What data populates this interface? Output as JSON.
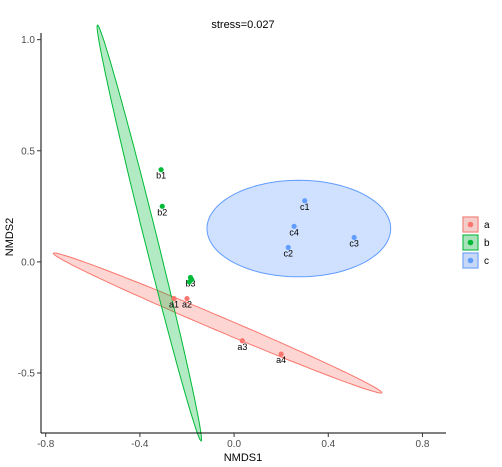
{
  "chart_data": {
    "type": "scatter",
    "title": "stress=0.027",
    "xlabel": "NMDS1",
    "ylabel": "NMDS2",
    "xlim": [
      -0.82,
      0.9
    ],
    "ylim": [
      -0.77,
      1.03
    ],
    "xticks": [
      -0.8,
      -0.4,
      0.0,
      0.4,
      0.8
    ],
    "xtick_labels": [
      "-0.8",
      "-0.4",
      "0.0",
      "0.4",
      "0.8"
    ],
    "yticks": [
      -0.5,
      0.0,
      0.5,
      1.0
    ],
    "ytick_labels": [
      "-0.5",
      "0.0",
      "0.5",
      "1.0"
    ],
    "grid": false,
    "legend": {
      "position": "right",
      "entries": [
        "a",
        "b",
        "c"
      ]
    },
    "series": [
      {
        "name": "a",
        "color": "#F8766D",
        "fill": "rgba(248,118,109,0.3)",
        "points": [
          {
            "label": "a1",
            "x": -0.255,
            "y": -0.165
          },
          {
            "label": "a2",
            "x": -0.2,
            "y": -0.165
          },
          {
            "label": "a3",
            "x": 0.035,
            "y": -0.355
          },
          {
            "label": "a4",
            "x": 0.2,
            "y": -0.415
          }
        ],
        "ellipse": {
          "cx": -0.07,
          "cy": -0.275,
          "rx": 0.758,
          "ry": 0.03,
          "angle_deg": -23
        }
      },
      {
        "name": "b",
        "color": "#00BA38",
        "fill": "rgba(0,186,56,0.3)",
        "points": [
          {
            "label": "b1",
            "x": -0.31,
            "y": 0.415
          },
          {
            "label": "b2",
            "x": -0.305,
            "y": 0.25
          },
          {
            "label": "b3",
            "x": -0.185,
            "y": -0.07
          },
          {
            "label": "b4",
            "x": -0.18,
            "y": -0.08
          },
          {
            "label": "b5",
            "x": -0.19,
            "y": -0.09
          }
        ],
        "point_labels_shown": [
          "b1",
          "b2",
          "b3"
        ],
        "ellipse": {
          "cx": -0.36,
          "cy": 0.13,
          "rx": 0.91,
          "ry": 0.027,
          "angle_deg": -76
        }
      },
      {
        "name": "c",
        "color": "#619CFF",
        "fill": "rgba(97,156,255,0.3)",
        "points": [
          {
            "label": "c1",
            "x": 0.3,
            "y": 0.275
          },
          {
            "label": "c2",
            "x": 0.23,
            "y": 0.065
          },
          {
            "label": "c3",
            "x": 0.51,
            "y": 0.11
          },
          {
            "label": "c4",
            "x": 0.255,
            "y": 0.16
          }
        ],
        "ellipse": {
          "cx": 0.275,
          "cy": 0.15,
          "rx": 0.39,
          "ry": 0.205,
          "angle_deg": 0
        }
      }
    ]
  }
}
